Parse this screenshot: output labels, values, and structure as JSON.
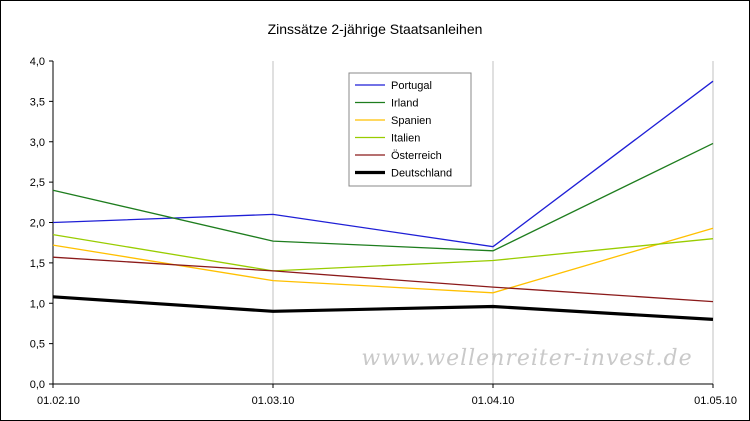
{
  "chart_data": {
    "type": "line",
    "title": "Zinssätze 2-jährige Staatsanleihen",
    "xlabel": "",
    "ylabel": "",
    "categories": [
      "01.02.10",
      "01.03.10",
      "01.04.10",
      "01.05.10"
    ],
    "ylim": [
      0,
      4
    ],
    "yticks": [
      "0,0",
      "0,5",
      "1,0",
      "1,5",
      "2,0",
      "2,5",
      "3,0",
      "3,5",
      "4,0"
    ],
    "grid": "vertical-only",
    "legend_position": "top-center",
    "series": [
      {
        "name": "Portugal",
        "color": "#1f1fd6",
        "width": "thin",
        "values": [
          2.0,
          2.1,
          1.7,
          3.75
        ]
      },
      {
        "name": "Irland",
        "color": "#1e7d1e",
        "width": "thin",
        "values": [
          2.4,
          1.77,
          1.65,
          2.98
        ]
      },
      {
        "name": "Spanien",
        "color": "#ffc000",
        "width": "thin",
        "values": [
          1.72,
          1.28,
          1.13,
          1.93
        ]
      },
      {
        "name": "Italien",
        "color": "#99cc00",
        "width": "thin",
        "values": [
          1.85,
          1.4,
          1.53,
          1.8
        ]
      },
      {
        "name": "Österreich",
        "color": "#8b1a1a",
        "width": "thin",
        "values": [
          1.57,
          1.4,
          1.2,
          1.02
        ]
      },
      {
        "name": "Deutschland",
        "color": "#000000",
        "width": "thick",
        "values": [
          1.08,
          0.9,
          0.96,
          0.8
        ]
      }
    ],
    "watermark": "www.wellenreiter-invest.de"
  }
}
